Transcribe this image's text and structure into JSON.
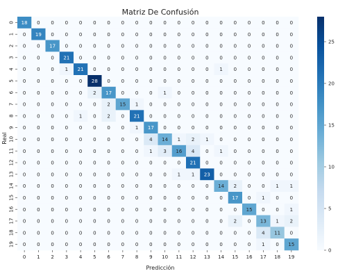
{
  "chart_data": {
    "type": "heatmap",
    "title": "Matriz De Confusión",
    "xlabel": "Predicción",
    "ylabel": "Real",
    "x_tick_labels": [
      "0",
      "1",
      "2",
      "3",
      "4",
      "5",
      "6",
      "7",
      "8",
      "9",
      "10",
      "11",
      "12",
      "13",
      "14",
      "15",
      "16",
      "17",
      "18",
      "19"
    ],
    "y_tick_labels": [
      "0",
      "1",
      "2",
      "3",
      "4",
      "5",
      "6",
      "7",
      "8",
      "9",
      "10",
      "11",
      "12",
      "13",
      "14",
      "15",
      "16",
      "17",
      "18",
      "19"
    ],
    "values": [
      [
        18,
        0,
        0,
        0,
        0,
        0,
        0,
        0,
        0,
        0,
        0,
        0,
        0,
        0,
        0,
        0,
        0,
        0,
        0,
        0
      ],
      [
        0,
        19,
        0,
        0,
        0,
        0,
        0,
        0,
        0,
        0,
        0,
        0,
        0,
        0,
        0,
        0,
        0,
        0,
        0,
        0
      ],
      [
        0,
        0,
        17,
        0,
        0,
        0,
        0,
        0,
        0,
        0,
        0,
        0,
        0,
        0,
        0,
        0,
        0,
        0,
        0,
        0
      ],
      [
        0,
        0,
        0,
        21,
        0,
        0,
        0,
        0,
        0,
        0,
        0,
        0,
        0,
        0,
        0,
        0,
        0,
        0,
        0,
        0
      ],
      [
        0,
        0,
        0,
        1,
        21,
        0,
        0,
        0,
        0,
        0,
        0,
        0,
        0,
        0,
        1,
        0,
        0,
        0,
        0,
        0
      ],
      [
        0,
        0,
        0,
        0,
        0,
        28,
        0,
        0,
        0,
        0,
        0,
        0,
        0,
        0,
        0,
        0,
        0,
        0,
        0,
        0
      ],
      [
        0,
        0,
        0,
        0,
        0,
        2,
        17,
        0,
        0,
        0,
        1,
        0,
        0,
        0,
        0,
        0,
        0,
        0,
        0,
        0
      ],
      [
        0,
        0,
        0,
        0,
        0,
        0,
        2,
        15,
        1,
        0,
        0,
        0,
        0,
        0,
        0,
        0,
        0,
        0,
        0,
        0
      ],
      [
        0,
        0,
        0,
        0,
        1,
        0,
        2,
        0,
        21,
        0,
        0,
        0,
        0,
        0,
        0,
        0,
        0,
        0,
        0,
        0
      ],
      [
        0,
        0,
        0,
        0,
        0,
        0,
        0,
        0,
        1,
        17,
        0,
        0,
        0,
        0,
        0,
        0,
        0,
        0,
        0,
        0
      ],
      [
        0,
        0,
        0,
        0,
        0,
        0,
        0,
        0,
        0,
        4,
        14,
        1,
        2,
        1,
        0,
        0,
        0,
        0,
        0,
        0
      ],
      [
        0,
        0,
        0,
        0,
        0,
        0,
        0,
        0,
        0,
        1,
        3,
        16,
        4,
        0,
        1,
        0,
        0,
        0,
        0,
        0
      ],
      [
        0,
        0,
        0,
        0,
        0,
        0,
        0,
        0,
        0,
        0,
        0,
        0,
        21,
        0,
        0,
        0,
        0,
        0,
        0,
        0
      ],
      [
        0,
        0,
        0,
        0,
        0,
        0,
        0,
        0,
        0,
        0,
        0,
        1,
        1,
        23,
        0,
        0,
        0,
        0,
        0,
        0
      ],
      [
        0,
        0,
        0,
        0,
        0,
        0,
        0,
        0,
        0,
        0,
        0,
        0,
        0,
        0,
        14,
        2,
        0,
        0,
        1,
        1
      ],
      [
        0,
        0,
        0,
        0,
        0,
        0,
        0,
        0,
        0,
        0,
        0,
        0,
        0,
        0,
        0,
        17,
        0,
        1,
        0,
        0
      ],
      [
        0,
        0,
        0,
        0,
        0,
        0,
        0,
        0,
        0,
        0,
        0,
        0,
        0,
        0,
        0,
        0,
        15,
        0,
        0,
        1
      ],
      [
        0,
        0,
        0,
        0,
        0,
        0,
        0,
        0,
        0,
        0,
        0,
        0,
        0,
        0,
        0,
        2,
        0,
        13,
        1,
        2
      ],
      [
        0,
        0,
        0,
        0,
        0,
        0,
        0,
        0,
        0,
        0,
        0,
        0,
        0,
        0,
        0,
        0,
        0,
        4,
        11,
        0
      ],
      [
        0,
        0,
        0,
        0,
        0,
        0,
        0,
        0,
        0,
        0,
        0,
        0,
        0,
        0,
        0,
        0,
        0,
        1,
        0,
        15
      ]
    ],
    "colorbar": {
      "range": [
        0,
        28
      ],
      "ticks": [
        0,
        5,
        10,
        15,
        20,
        25
      ],
      "colormap": "Blues",
      "colors": [
        "#f7fbff",
        "#deebf7",
        "#c6dbef",
        "#9ecae1",
        "#6baed6",
        "#4292c6",
        "#2171b5",
        "#08519c",
        "#08306b"
      ]
    },
    "grid": false
  }
}
